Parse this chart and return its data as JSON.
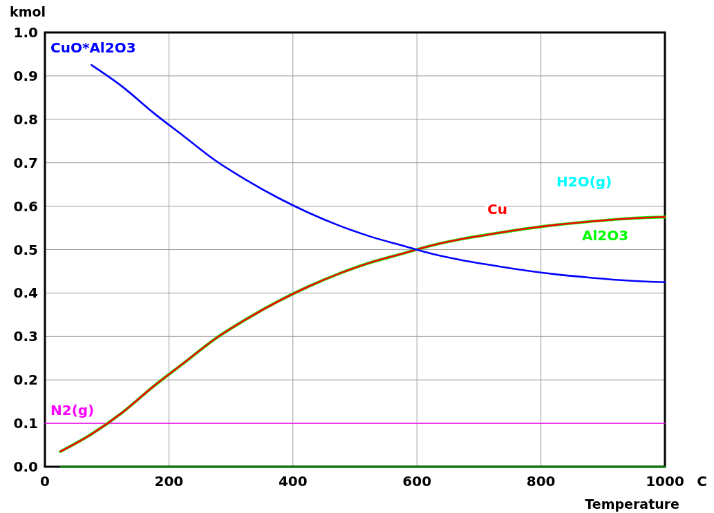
{
  "chart_data": {
    "type": "line",
    "xlabel": "Temperature",
    "ylabel": "kmol",
    "annotations": [
      "C"
    ],
    "x": [
      25,
      75,
      125,
      175,
      225,
      275,
      325,
      375,
      425,
      475,
      525,
      575,
      625,
      675,
      725,
      775,
      825,
      875,
      925,
      975,
      1000
    ],
    "series": [
      {
        "name": "N2(g)",
        "color": "#ff00ff",
        "x": [
          0,
          1000
        ],
        "values": [
          0.1,
          0.1
        ]
      },
      {
        "color": "#008000",
        "x": [
          25,
          1000
        ],
        "values": [
          0,
          0
        ]
      },
      {
        "name": "H2O(g)",
        "color": "#00ffff",
        "values": [
          null,
          null,
          null,
          null,
          null,
          null,
          null,
          null,
          null,
          null,
          null,
          null,
          null,
          null,
          null,
          null,
          null,
          null,
          null,
          null,
          null
        ]
      },
      {
        "name": "Al2O3",
        "color": "#00ff00",
        "values": [
          0.035,
          0.075,
          0.125,
          0.185,
          0.24,
          0.295,
          0.34,
          0.38,
          0.415,
          0.445,
          0.47,
          0.49,
          0.51,
          0.525,
          0.537,
          0.548,
          0.557,
          0.564,
          0.57,
          0.574,
          0.575
        ]
      },
      {
        "name": "Cu",
        "color": "#ff0000",
        "values": [
          0.035,
          0.075,
          0.125,
          0.185,
          0.24,
          0.295,
          0.34,
          0.38,
          0.415,
          0.445,
          0.47,
          0.49,
          0.51,
          0.525,
          0.537,
          0.548,
          0.557,
          0.564,
          0.57,
          0.574,
          0.575
        ]
      },
      {
        "name": "CuO*Al2O3",
        "color": "#0000ff",
        "values": [
          null,
          0.925,
          0.875,
          0.815,
          0.76,
          0.705,
          0.66,
          0.62,
          0.585,
          0.555,
          0.53,
          0.51,
          0.49,
          0.475,
          0.463,
          0.452,
          0.443,
          0.436,
          0.43,
          0.426,
          0.425
        ]
      }
    ],
    "xlim": [
      0,
      1000
    ],
    "xticks": [
      0,
      200,
      400,
      600,
      800,
      1000
    ],
    "ylim": [
      0,
      1
    ],
    "yticks": [
      {
        "value": 0,
        "label": "0.0"
      },
      {
        "value": 0.1,
        "label": "0.1"
      },
      {
        "value": 0.2,
        "label": "0.2"
      },
      {
        "value": 0.3,
        "label": "0.3"
      },
      {
        "value": 0.4,
        "label": "0.4"
      },
      {
        "value": 0.5,
        "label": "0.5"
      },
      {
        "value": 0.6,
        "label": "0.6"
      },
      {
        "value": 0.7,
        "label": "0.7"
      },
      {
        "value": 0.8,
        "label": "0.8"
      },
      {
        "value": 0.9,
        "label": "0.9"
      },
      {
        "value": 1,
        "label": "1.0"
      }
    ],
    "grid": true,
    "legend": false,
    "marker": "none",
    "line_style": "solid"
  }
}
